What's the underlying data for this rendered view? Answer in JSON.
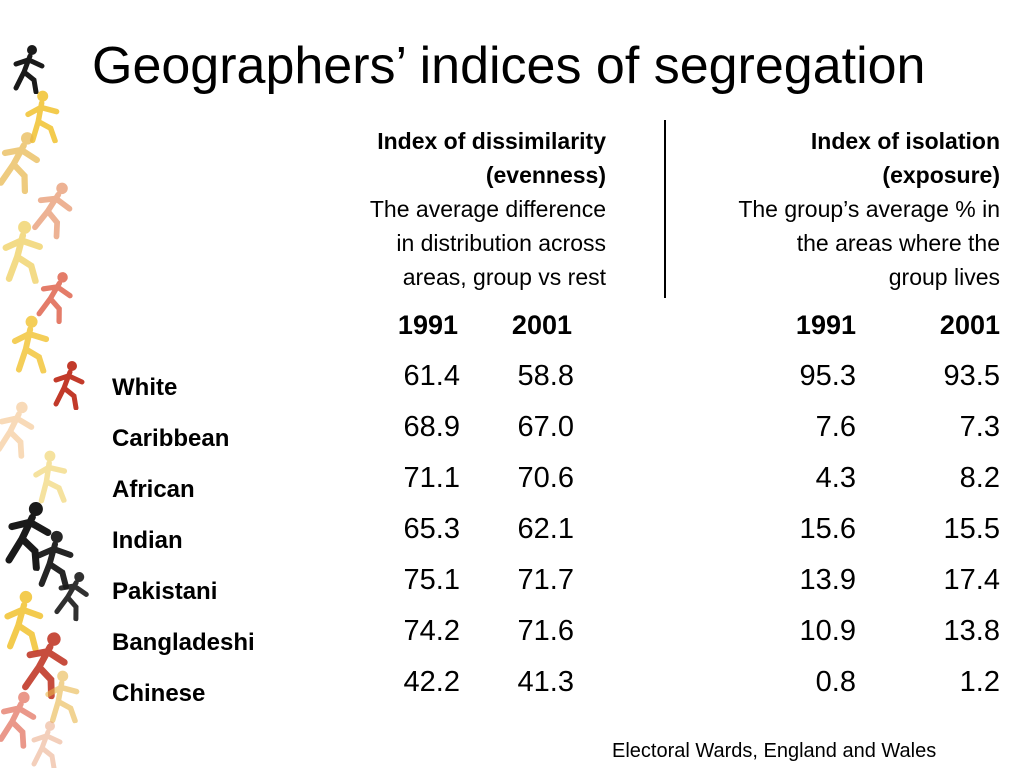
{
  "title": "Geographers’ indices of segregation",
  "dissimilarity": {
    "heading": [
      "Index of dissimilarity",
      "(evenness)"
    ],
    "description": [
      "The average difference",
      "in distribution across",
      "areas, group vs rest"
    ]
  },
  "isolation": {
    "heading": [
      "Index of isolation",
      "(exposure)"
    ],
    "description": [
      "The group’s average % in",
      "the areas where the",
      "group lives"
    ]
  },
  "years": [
    "1991",
    "2001",
    "1991",
    "2001"
  ],
  "rows": [
    {
      "group": "White",
      "values": [
        "61.4",
        "58.8",
        "95.3",
        "93.5"
      ]
    },
    {
      "group": "Caribbean",
      "values": [
        "68.9",
        "67.0",
        "7.6",
        "7.3"
      ]
    },
    {
      "group": "African",
      "values": [
        "71.1",
        "70.6",
        "4.3",
        "8.2"
      ]
    },
    {
      "group": "Indian",
      "values": [
        "65.3",
        "62.1",
        "15.6",
        "15.5"
      ]
    },
    {
      "group": "Pakistani",
      "values": [
        "75.1",
        "71.7",
        "13.9",
        "17.4"
      ]
    },
    {
      "group": "Bangladeshi",
      "values": [
        "74.2",
        "71.6",
        "10.9",
        "13.8"
      ]
    },
    {
      "group": "Chinese",
      "values": [
        "42.2",
        "41.3",
        "0.8",
        "1.2"
      ]
    }
  ],
  "source": "Electoral Wards, England and Wales",
  "decoration": {
    "icon": "running-figure-icon",
    "colors": [
      "#1a1a1a",
      "#f2c230",
      "#e8b64a",
      "#d9452b",
      "#e9a07a",
      "#f0d060",
      "#c23a2a",
      "#f5c38a"
    ]
  }
}
